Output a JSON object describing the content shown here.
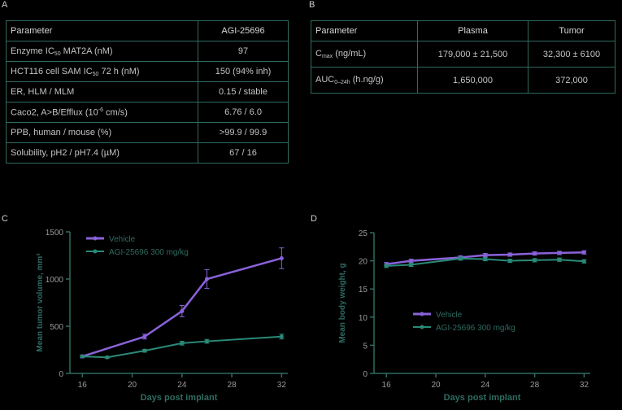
{
  "panel_a": {
    "letter": "A",
    "header": [
      "Parameter",
      "AGI-25696"
    ],
    "rows": [
      {
        "pre": "Enzyme IC",
        "sub": "50",
        "post": " MAT2A (nM)",
        "value": "97"
      },
      {
        "pre": "HCT116 cell SAM IC",
        "sub": "50",
        "post": " 72 h (nM)",
        "value": "150 (94% inh)"
      },
      {
        "pre": "ER, HLM / MLM",
        "sub": "",
        "post": "",
        "value": "0.15 / stable"
      },
      {
        "pre": "Caco2, A>B/Efflux (10",
        "sup": "-6",
        "post": " cm/s)",
        "value": "6.76 / 6.0"
      },
      {
        "pre": "PPB, human / mouse (%)",
        "sub": "",
        "post": "",
        "value": ">99.9 / 99.9"
      },
      {
        "pre": "Solubility, pH2 / pH7.4 (µM)",
        "sub": "",
        "post": "",
        "value": "67 / 16"
      }
    ]
  },
  "panel_b": {
    "letter": "B",
    "header": [
      "Parameter",
      "Plasma",
      "Tumor"
    ],
    "rows": [
      {
        "pre": "C",
        "sub": "max",
        "post": " (ng/mL)",
        "plasma": "179,000 ± 21,500",
        "tumor": "32,300 ± 6100"
      },
      {
        "pre": "AUC",
        "sub": "0–24h",
        "post": " (h.ng/g)",
        "plasma": "1,650,000",
        "tumor": "372,000"
      }
    ]
  },
  "chart_data": [
    {
      "letter": "C",
      "type": "line",
      "xlabel": "Days post implant",
      "ylabel": "Mean tumor volume, mm³",
      "xlim": [
        15,
        32.5
      ],
      "ylim": [
        0,
        1500
      ],
      "xticks": [
        16,
        20,
        24,
        28,
        32
      ],
      "yticks": [
        0,
        500,
        1000,
        1500
      ],
      "legend": "top-left",
      "series": [
        {
          "name": "Vehicle",
          "color": "#8a62d9",
          "x": [
            16,
            21,
            24,
            26,
            32
          ],
          "y": [
            180,
            390,
            660,
            1000,
            1220
          ],
          "err": [
            15,
            25,
            60,
            100,
            110
          ]
        },
        {
          "name": "AGI-25696 300 mg/kg",
          "color": "#2a8a78",
          "x": [
            16,
            18,
            21,
            24,
            26,
            32
          ],
          "y": [
            180,
            170,
            240,
            320,
            340,
            390
          ],
          "err": [
            10,
            10,
            15,
            20,
            20,
            25
          ]
        }
      ]
    },
    {
      "letter": "D",
      "type": "line",
      "xlabel": "Days post implant",
      "ylabel": "Mean body weight, g",
      "xlim": [
        15,
        32.5
      ],
      "ylim": [
        0,
        25
      ],
      "xticks": [
        16,
        20,
        24,
        28,
        32
      ],
      "yticks": [
        0,
        5,
        10,
        15,
        20,
        25
      ],
      "legend": "bottom-left",
      "series": [
        {
          "name": "Vehicle",
          "color": "#8a62d9",
          "x": [
            16,
            18,
            22,
            24,
            26,
            28,
            30,
            32
          ],
          "y": [
            19.4,
            20.0,
            20.6,
            21.0,
            21.1,
            21.3,
            21.4,
            21.5
          ],
          "err": [
            0.3,
            0.3,
            0.3,
            0.3,
            0.3,
            0.3,
            0.3,
            0.3
          ]
        },
        {
          "name": "AGI-25696 300 mg/kg",
          "color": "#2a8a78",
          "x": [
            16,
            18,
            22,
            24,
            26,
            28,
            30,
            32
          ],
          "y": [
            19.1,
            19.3,
            20.4,
            20.3,
            20.0,
            20.1,
            20.2,
            19.9
          ],
          "err": [
            0.3,
            0.3,
            0.3,
            0.3,
            0.3,
            0.3,
            0.3,
            0.3
          ]
        }
      ]
    }
  ]
}
